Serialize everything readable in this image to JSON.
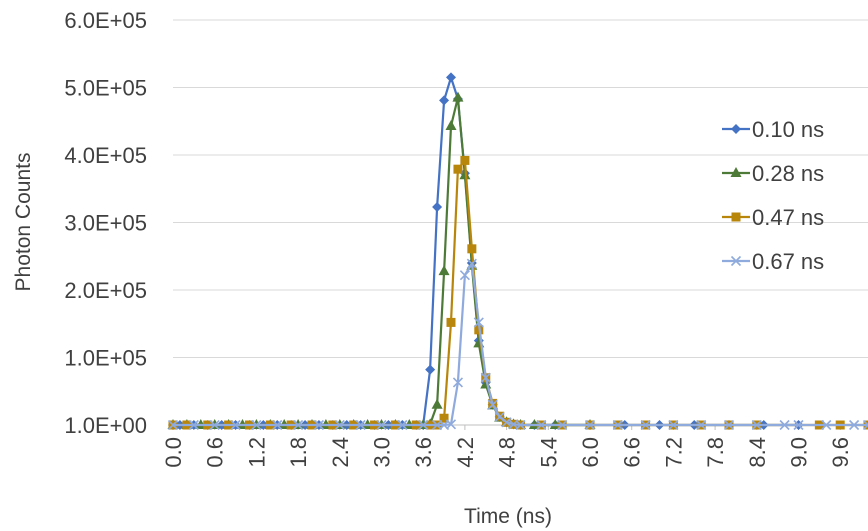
{
  "chart_data": {
    "type": "line",
    "title": "",
    "xlabel": "Time (ns)",
    "ylabel": "Photon Counts",
    "ylim": [
      0,
      600000
    ],
    "xlim": [
      0.0,
      10.0
    ],
    "y_tick_labels": [
      "1.0E+00",
      "1.0E+05",
      "2.0E+05",
      "3.0E+05",
      "4.0E+05",
      "5.0E+05",
      "6.0E+05"
    ],
    "x_tick_labels": [
      "0.0",
      "0.6",
      "1.2",
      "1.8",
      "2.4",
      "3.0",
      "3.6",
      "4.2",
      "4.8",
      "5.4",
      "6.0",
      "6.6",
      "7.2",
      "7.8",
      "8.4",
      "9.0",
      "9.6"
    ],
    "grid": "horizontal",
    "legend_position": "right",
    "series": [
      {
        "name": "0.10 ns",
        "color": "#4472C4",
        "marker": "diamond",
        "x": [
          0,
          0.1,
          0.3,
          0.5,
          0.7,
          0.9,
          1.1,
          1.3,
          1.5,
          1.7,
          1.9,
          2.1,
          2.3,
          2.5,
          2.7,
          2.9,
          3.1,
          3.3,
          3.5,
          3.6,
          3.7,
          3.8,
          3.9,
          4.0,
          4.1,
          4.2,
          4.3,
          4.4,
          4.5,
          4.6,
          4.7,
          4.8,
          4.9,
          5.0,
          5.2,
          5.5,
          6.0,
          6.5,
          7.0,
          7.5,
          8.0,
          8.5,
          9.0
        ],
        "y": [
          1,
          1,
          1,
          1,
          1,
          1,
          1,
          1,
          1,
          1,
          1,
          1,
          1,
          1,
          1,
          1,
          1,
          1,
          1,
          1,
          82000,
          323000,
          481000,
          515000,
          483000,
          373000,
          240000,
          125000,
          63000,
          30000,
          12000,
          4000,
          1000,
          1,
          1,
          1,
          1,
          1,
          1,
          1,
          1,
          1,
          1
        ]
      },
      {
        "name": "0.28 ns",
        "color": "#4E7A38",
        "marker": "triangle",
        "x": [
          0,
          0.2,
          0.4,
          0.6,
          0.8,
          1.0,
          1.2,
          1.4,
          1.6,
          1.8,
          2.0,
          2.2,
          2.4,
          2.6,
          2.8,
          3.0,
          3.2,
          3.4,
          3.6,
          3.7,
          3.8,
          3.9,
          4.0,
          4.1,
          4.2,
          4.3,
          4.4,
          4.5,
          4.6,
          4.7,
          4.8,
          4.9,
          5.0,
          5.2,
          5.5,
          6.0
        ],
        "y": [
          1,
          1,
          1,
          1,
          1,
          1,
          1,
          1,
          1,
          1,
          1,
          1,
          1,
          1,
          1,
          1,
          1,
          1,
          1,
          1000,
          30000,
          228000,
          443000,
          485000,
          370000,
          236000,
          121000,
          60000,
          29000,
          11000,
          4000,
          1000,
          1,
          1,
          1,
          1
        ]
      },
      {
        "name": "0.47 ns",
        "color": "#B8860B",
        "marker": "square",
        "x": [
          0,
          0.2,
          0.5,
          0.8,
          1.1,
          1.4,
          1.7,
          2.0,
          2.3,
          2.6,
          2.9,
          3.2,
          3.5,
          3.7,
          3.8,
          3.9,
          4.0,
          4.1,
          4.2,
          4.3,
          4.4,
          4.5,
          4.6,
          4.7,
          4.8,
          4.9,
          5.0,
          5.3,
          5.6,
          6.0,
          6.4,
          6.8,
          7.2,
          7.6,
          8.0,
          8.4,
          9.3,
          9.6,
          10.0
        ],
        "y": [
          1,
          1,
          1,
          1,
          1,
          1,
          1,
          1,
          1,
          1,
          1,
          1,
          1,
          1,
          1,
          10000,
          152000,
          379000,
          392000,
          261000,
          141000,
          70000,
          32000,
          13000,
          4000,
          1000,
          1,
          1,
          1,
          1,
          1,
          1,
          1,
          1,
          1,
          1,
          1,
          1,
          1
        ]
      },
      {
        "name": "0.67 ns",
        "color": "#8FAADC",
        "marker": "x",
        "x": [
          0,
          0.3,
          0.6,
          0.9,
          1.2,
          1.5,
          1.8,
          2.1,
          2.4,
          2.7,
          3.0,
          3.3,
          3.6,
          3.8,
          3.9,
          4.0,
          4.1,
          4.2,
          4.3,
          4.4,
          4.5,
          4.6,
          4.7,
          4.8,
          4.9,
          5.0,
          5.3,
          5.6,
          6.0,
          6.4,
          6.8,
          7.2,
          7.6,
          8.0,
          8.4,
          8.8,
          9.0,
          9.4,
          9.8,
          10.0
        ],
        "y": [
          1,
          1,
          1,
          1,
          1,
          1,
          1,
          1,
          1,
          1,
          1,
          1,
          1,
          1,
          1,
          1000,
          63000,
          222000,
          239000,
          152000,
          70000,
          30000,
          12000,
          4000,
          1000,
          1,
          1,
          1,
          1,
          1,
          1,
          1,
          1,
          1,
          1,
          1,
          1,
          1,
          1,
          1
        ]
      }
    ]
  }
}
